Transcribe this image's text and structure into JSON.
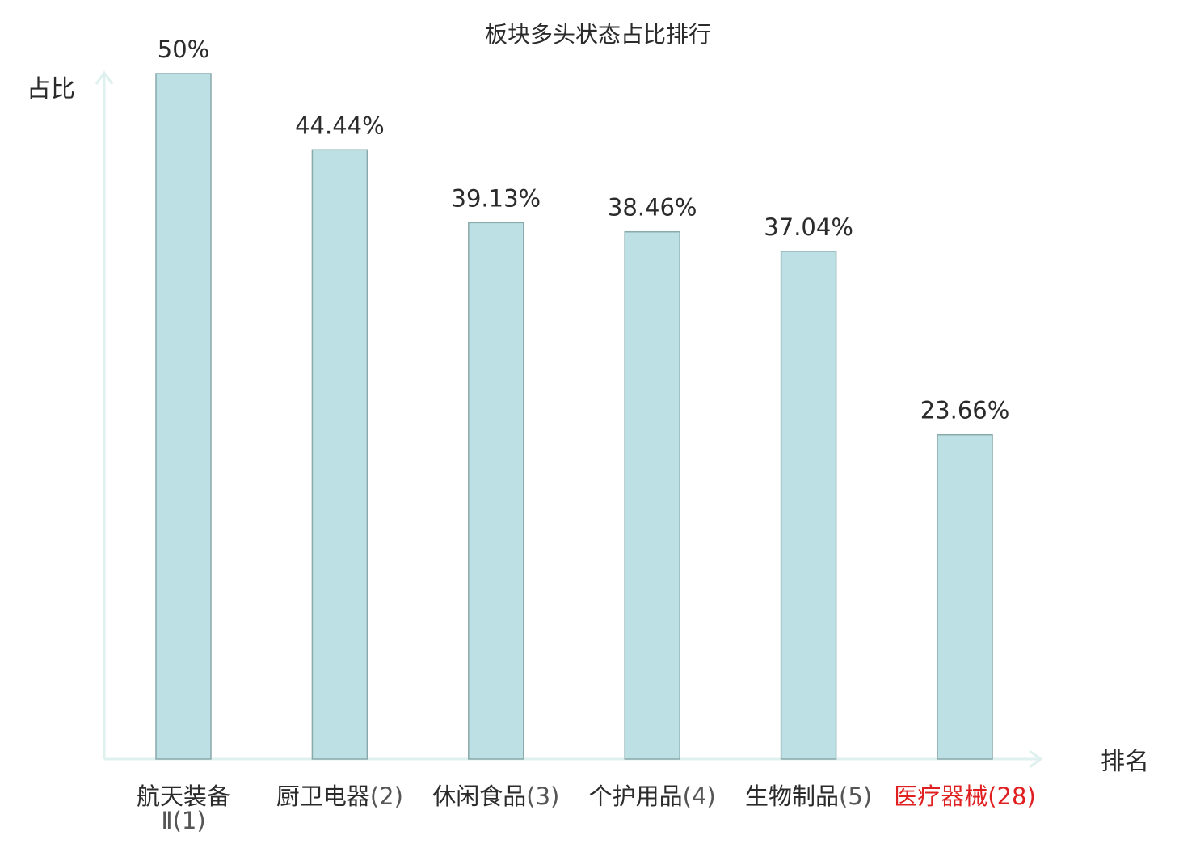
{
  "chart_data": {
    "type": "bar",
    "title": "板块多头状态占比排行",
    "ylabel": "占比",
    "xlabel": "排名",
    "ylim": [
      0,
      50
    ],
    "grid": false,
    "legend": "none",
    "categories": [
      {
        "name": "航天装备",
        "name_line2": "Ⅱ",
        "rank": "(1)",
        "highlight": false
      },
      {
        "name": "厨卫电器",
        "name_line2": "",
        "rank": "(2)",
        "highlight": false
      },
      {
        "name": "休闲食品",
        "name_line2": "",
        "rank": "(3)",
        "highlight": false
      },
      {
        "name": "个护用品",
        "name_line2": "",
        "rank": "(4)",
        "highlight": false
      },
      {
        "name": "生物制品",
        "name_line2": "",
        "rank": "(5)",
        "highlight": false
      },
      {
        "name": "医疗器械",
        "name_line2": "",
        "rank": "(28)",
        "highlight": true
      }
    ],
    "values": [
      50,
      44.44,
      39.13,
      38.46,
      37.04,
      23.66
    ],
    "value_labels": [
      "50%",
      "44.44%",
      "39.13%",
      "38.46%",
      "37.04%",
      "23.66%"
    ]
  },
  "colors": {
    "bar_fill": "#bce0e3",
    "bar_stroke": "#8aa9ab",
    "axis": "#dff1ef",
    "text": "#2b2b2b",
    "rank_text": "#555555",
    "highlight": "#e02020"
  }
}
